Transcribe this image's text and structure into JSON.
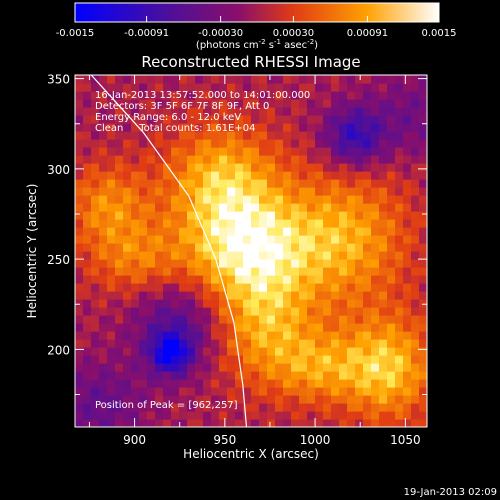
{
  "colorbar": {
    "ticks": [
      "-0.0015",
      "-0.00091",
      "-0.00030",
      "0.00030",
      "0.00091",
      "0.0015"
    ],
    "units_prefix": "(photons cm",
    "units_exp1": "-2",
    "units_mid": " s",
    "units_exp2": "-1",
    "units_mid2": " asec",
    "units_exp3": "-2",
    "units_suffix": ")",
    "vmin": -0.0015,
    "vmax": 0.0015
  },
  "annotations": {
    "time_range": "16-Jan-2013 13:57:52.000 to 14:01:00.000",
    "detectors": "Detectors: 3F 5F 6F 7F 8F 9F, Att 0",
    "energy": "Energy Range: 6.0 - 12.0 keV",
    "clean": "Clean     Total counts: 1.61E+04",
    "peak": "Position of Peak = [962,257]"
  },
  "footer": {
    "date": "19-Jan-2013 02:09"
  },
  "chart_data": {
    "type": "heatmap",
    "title": "Reconstructed RHESSI Image",
    "xlabel": "Heliocentric X (arcsec)",
    "ylabel": "Heliocentric Y (arcsec)",
    "xlim": [
      867,
      1062
    ],
    "ylim": [
      157,
      352
    ],
    "xticks": [
      900,
      950,
      1000,
      1050
    ],
    "yticks": [
      200,
      250,
      300,
      350
    ],
    "peak": [
      962,
      257
    ],
    "grid": false,
    "colormap": "red-temperature (blue-purple-red-yellow-white)",
    "components": [
      {
        "x": 962,
        "y": 257,
        "amp": 0.00135,
        "sx": 26,
        "sy": 22
      },
      {
        "x": 948,
        "y": 296,
        "amp": 0.00095,
        "sx": 22,
        "sy": 20
      },
      {
        "x": 972,
        "y": 212,
        "amp": 0.00085,
        "sx": 20,
        "sy": 22
      },
      {
        "x": 1018,
        "y": 262,
        "amp": 0.0009,
        "sx": 24,
        "sy": 26
      },
      {
        "x": 1040,
        "y": 190,
        "amp": 0.0011,
        "sx": 18,
        "sy": 20
      },
      {
        "x": 1002,
        "y": 190,
        "amp": 0.0007,
        "sx": 18,
        "sy": 14
      },
      {
        "x": 885,
        "y": 280,
        "amp": 0.00075,
        "sx": 16,
        "sy": 16
      },
      {
        "x": 900,
        "y": 250,
        "amp": 0.0006,
        "sx": 18,
        "sy": 14
      },
      {
        "x": 925,
        "y": 215,
        "amp": -0.0007,
        "sx": 18,
        "sy": 18
      },
      {
        "x": 920,
        "y": 198,
        "amp": -0.0012,
        "sx": 8,
        "sy": 8
      },
      {
        "x": 1022,
        "y": 318,
        "amp": -0.001,
        "sx": 12,
        "sy": 12
      },
      {
        "x": 880,
        "y": 170,
        "amp": -0.0005,
        "sx": 18,
        "sy": 16
      },
      {
        "x": 1055,
        "y": 330,
        "amp": -0.0004,
        "sx": 16,
        "sy": 16
      }
    ],
    "limb": {
      "points": [
        [
          876,
          352
        ],
        [
          905,
          320
        ],
        [
          930,
          285
        ],
        [
          945,
          250
        ],
        [
          955,
          215
        ],
        [
          960,
          180
        ],
        [
          962,
          157
        ]
      ]
    }
  }
}
